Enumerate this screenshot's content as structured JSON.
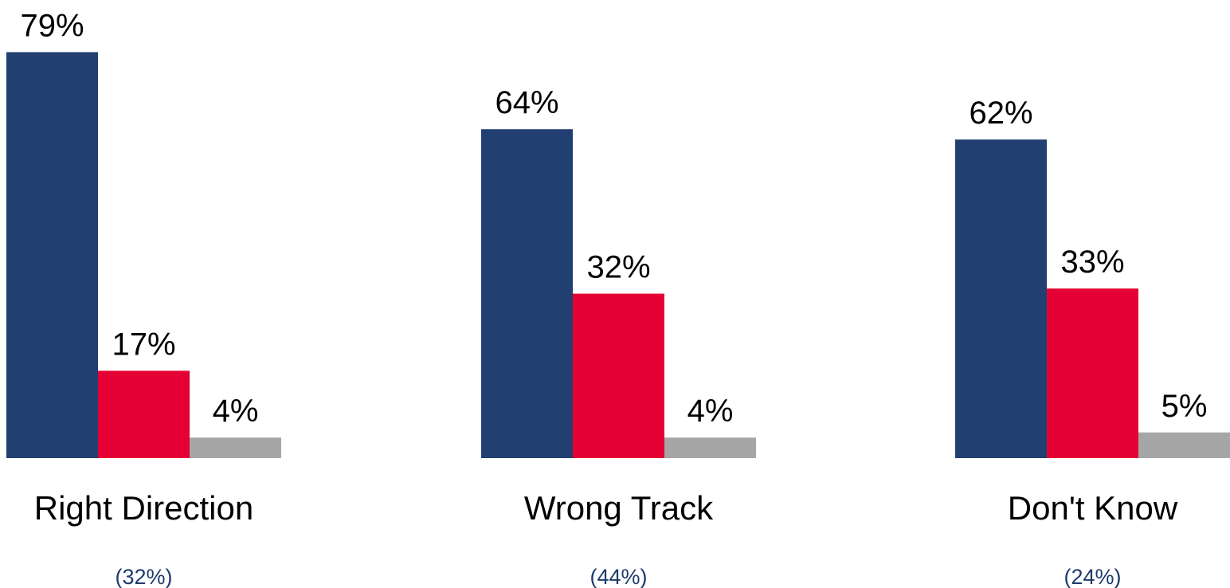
{
  "chart_data": {
    "type": "bar",
    "categories": [
      "Right Direction",
      "Wrong Track",
      "Don't Know"
    ],
    "category_subtitles": [
      "(32%)",
      "(44%)",
      "(24%)"
    ],
    "series": [
      {
        "values": [
          79,
          64,
          62
        ],
        "labels": [
          "79%",
          "64%",
          "62%"
        ],
        "color": "#223f71"
      },
      {
        "values": [
          17,
          32,
          33
        ],
        "labels": [
          "17%",
          "32%",
          "33%"
        ],
        "color": "#e40032"
      },
      {
        "values": [
          4,
          4,
          5
        ],
        "labels": [
          "4%",
          "4%",
          "5%"
        ],
        "color": "#a6a6a6"
      }
    ],
    "ylim": [
      0,
      100
    ],
    "grid": false,
    "legend": "none"
  }
}
